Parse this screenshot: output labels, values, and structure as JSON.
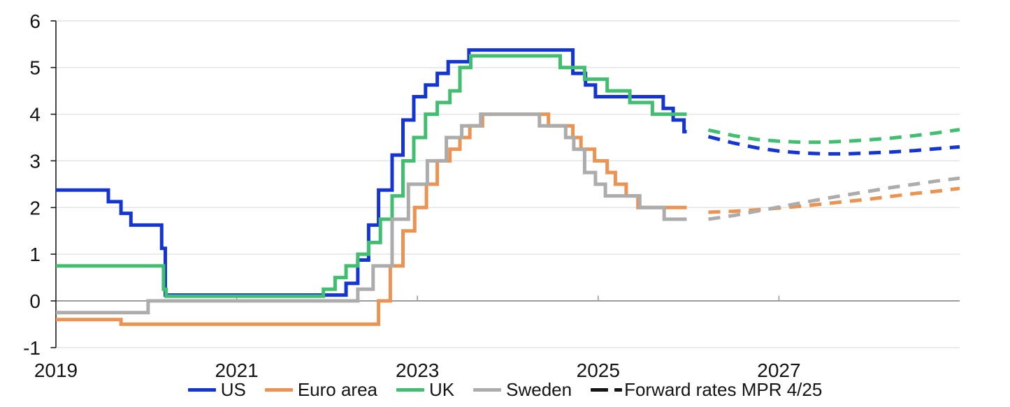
{
  "legend": {
    "items": [
      {
        "label": "US",
        "color": "#1435d2",
        "style": "solid"
      },
      {
        "label": "Euro area",
        "color": "#eb9352",
        "style": "solid"
      },
      {
        "label": "UK",
        "color": "#41be70",
        "style": "solid"
      },
      {
        "label": "Sweden",
        "color": "#acacac",
        "style": "solid"
      },
      {
        "label": "Forward rates MPR 4/25",
        "color": "#141414",
        "style": "dashed"
      }
    ]
  },
  "chart_data": {
    "type": "line",
    "subtype": "step-after policy rates with dashed forward-rate projections",
    "title": "",
    "xlabel": "",
    "ylabel": "",
    "xlim": [
      2019,
      2029.02
    ],
    "ylim": [
      -1,
      6
    ],
    "yticks": [
      6,
      5,
      4,
      3,
      2,
      1,
      0,
      -1
    ],
    "xticks": [
      2019,
      2021,
      2023,
      2025,
      2027
    ],
    "grid": "horizontal",
    "legend_position": "bottom",
    "history_end": 2025.98,
    "colors": {
      "grid": "#e4e4e4",
      "zero_line": "#9c9c9c",
      "axis": "#1a1a1a",
      "text": "#141414"
    },
    "series": [
      {
        "name": "US",
        "color": "#1435d2",
        "points": [
          [
            2019.0,
            2.375
          ],
          [
            2019.58,
            2.125
          ],
          [
            2019.72,
            1.875
          ],
          [
            2019.83,
            1.625
          ],
          [
            2020.17,
            1.125
          ],
          [
            2020.21,
            0.125
          ],
          [
            2022.21,
            0.375
          ],
          [
            2022.34,
            0.875
          ],
          [
            2022.46,
            1.625
          ],
          [
            2022.57,
            2.375
          ],
          [
            2022.72,
            3.125
          ],
          [
            2022.84,
            3.875
          ],
          [
            2022.96,
            4.375
          ],
          [
            2023.09,
            4.625
          ],
          [
            2023.22,
            4.875
          ],
          [
            2023.34,
            5.125
          ],
          [
            2023.57,
            5.375
          ],
          [
            2024.72,
            4.875
          ],
          [
            2024.86,
            4.625
          ],
          [
            2024.97,
            4.375
          ],
          [
            2025.72,
            4.125
          ],
          [
            2025.83,
            3.875
          ],
          [
            2025.95,
            3.625
          ]
        ]
      },
      {
        "name": "Euro area",
        "color": "#eb9352",
        "points": [
          [
            2019.0,
            -0.4
          ],
          [
            2019.72,
            -0.5
          ],
          [
            2022.57,
            0.0
          ],
          [
            2022.7,
            0.75
          ],
          [
            2022.84,
            1.5
          ],
          [
            2022.97,
            2.0
          ],
          [
            2023.1,
            2.5
          ],
          [
            2023.22,
            3.0
          ],
          [
            2023.36,
            3.25
          ],
          [
            2023.47,
            3.5
          ],
          [
            2023.58,
            3.75
          ],
          [
            2023.72,
            4.0
          ],
          [
            2024.45,
            3.75
          ],
          [
            2024.72,
            3.5
          ],
          [
            2024.81,
            3.25
          ],
          [
            2024.96,
            3.0
          ],
          [
            2025.1,
            2.75
          ],
          [
            2025.19,
            2.5
          ],
          [
            2025.31,
            2.25
          ],
          [
            2025.44,
            2.0
          ]
        ]
      },
      {
        "name": "UK",
        "color": "#41be70",
        "points": [
          [
            2019.0,
            0.75
          ],
          [
            2020.19,
            0.25
          ],
          [
            2020.22,
            0.1
          ],
          [
            2021.96,
            0.25
          ],
          [
            2022.09,
            0.5
          ],
          [
            2022.21,
            0.75
          ],
          [
            2022.34,
            1.0
          ],
          [
            2022.46,
            1.25
          ],
          [
            2022.59,
            1.75
          ],
          [
            2022.72,
            2.25
          ],
          [
            2022.84,
            3.0
          ],
          [
            2022.96,
            3.5
          ],
          [
            2023.09,
            4.0
          ],
          [
            2023.22,
            4.25
          ],
          [
            2023.36,
            4.5
          ],
          [
            2023.47,
            5.0
          ],
          [
            2023.59,
            5.25
          ],
          [
            2024.58,
            5.0
          ],
          [
            2024.85,
            4.75
          ],
          [
            2025.1,
            4.5
          ],
          [
            2025.35,
            4.25
          ],
          [
            2025.6,
            4.0
          ]
        ]
      },
      {
        "name": "Sweden",
        "color": "#acacac",
        "points": [
          [
            2019.0,
            -0.25
          ],
          [
            2020.02,
            0.0
          ],
          [
            2022.34,
            0.25
          ],
          [
            2022.51,
            0.75
          ],
          [
            2022.72,
            1.75
          ],
          [
            2022.9,
            2.5
          ],
          [
            2023.11,
            3.0
          ],
          [
            2023.32,
            3.5
          ],
          [
            2023.49,
            3.75
          ],
          [
            2023.7,
            4.0
          ],
          [
            2024.35,
            3.75
          ],
          [
            2024.64,
            3.5
          ],
          [
            2024.73,
            3.25
          ],
          [
            2024.85,
            2.75
          ],
          [
            2024.97,
            2.5
          ],
          [
            2025.08,
            2.25
          ],
          [
            2025.46,
            2.0
          ],
          [
            2025.73,
            1.75
          ]
        ]
      }
    ],
    "forward": {
      "label": "Forward rates MPR 4/25",
      "dash": [
        17,
        12
      ],
      "x": [
        2026.22,
        2026.5,
        2026.75,
        2027.0,
        2027.25,
        2027.5,
        2027.75,
        2028.0,
        2028.25,
        2028.5,
        2028.75,
        2029.0
      ],
      "series": [
        {
          "name": "US forward",
          "color": "#1435d2",
          "values": [
            3.52,
            3.38,
            3.28,
            3.21,
            3.17,
            3.15,
            3.15,
            3.17,
            3.19,
            3.22,
            3.26,
            3.3
          ]
        },
        {
          "name": "Euro area forward",
          "color": "#eb9352",
          "values": [
            1.9,
            1.92,
            1.95,
            1.99,
            2.03,
            2.08,
            2.13,
            2.18,
            2.24,
            2.3,
            2.35,
            2.41
          ]
        },
        {
          "name": "UK forward",
          "color": "#41be70",
          "values": [
            3.66,
            3.54,
            3.46,
            3.42,
            3.4,
            3.4,
            3.42,
            3.45,
            3.49,
            3.54,
            3.6,
            3.67
          ]
        },
        {
          "name": "Sweden forward",
          "color": "#acacac",
          "values": [
            1.75,
            1.83,
            1.92,
            2.01,
            2.1,
            2.19,
            2.27,
            2.35,
            2.43,
            2.5,
            2.57,
            2.63
          ]
        }
      ]
    }
  }
}
